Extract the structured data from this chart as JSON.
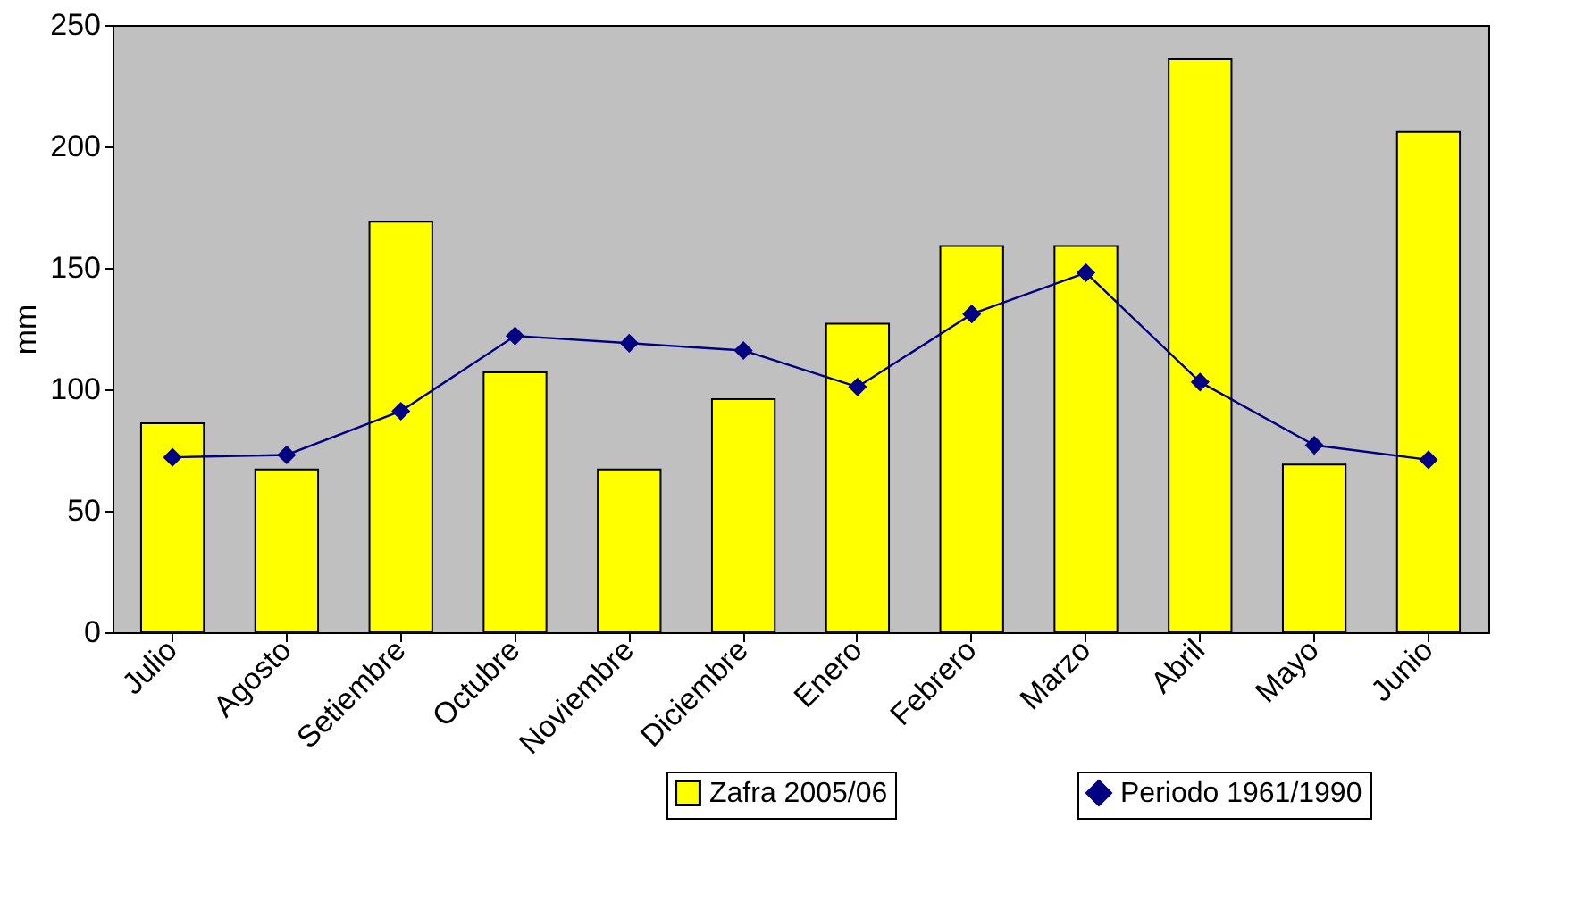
{
  "chart_data": {
    "type": "bar",
    "ylabel": "mm",
    "categories": [
      "Julio",
      "Agosto",
      "Setiembre",
      "Octubre",
      "Noviembre",
      "Diciembre",
      "Enero",
      "Febrero",
      "Marzo",
      "Abril",
      "Mayo",
      "Junio"
    ],
    "series": [
      {
        "name": "Zafra 2005/06",
        "color": "#ffff00",
        "values": [
          86,
          67,
          169,
          107,
          67,
          96,
          127,
          159,
          159,
          236,
          69,
          206
        ]
      },
      {
        "name": "Periodo 1961/1990",
        "type": "line",
        "color": "#000080",
        "marker": "diamond",
        "values": [
          72,
          73,
          91,
          122,
          119,
          116,
          101,
          131,
          148,
          103,
          77,
          71
        ]
      }
    ],
    "ylim": [
      0,
      250
    ],
    "yticks": [
      0,
      50,
      100,
      150,
      200,
      250
    ],
    "grid": false,
    "legend": "bottom right"
  }
}
